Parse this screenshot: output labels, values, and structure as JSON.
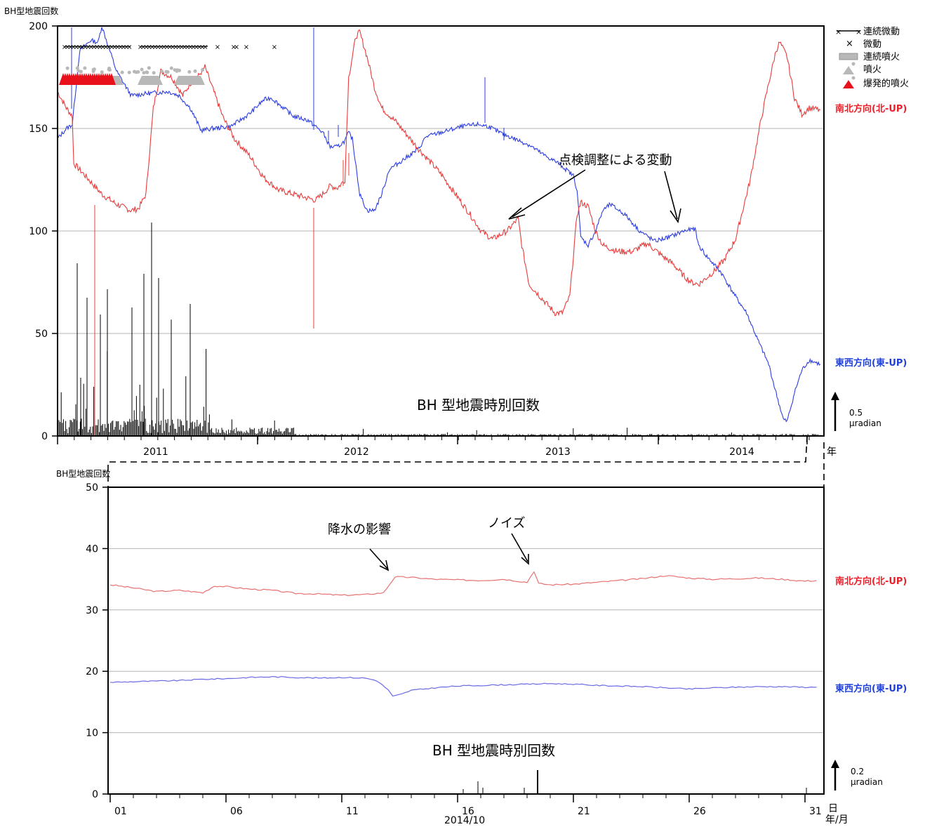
{
  "colors": {
    "ns": "#e83c3c",
    "ew": "#2d3ee0",
    "count": "#000000",
    "grid": "#b4b4b4",
    "eruption_red": "#e8101a",
    "eruption_gray": "#b8b8b8"
  },
  "chart_data": [
    {
      "type": "line",
      "ylabel": "BH型地震回数",
      "ylim": [
        0,
        200
      ],
      "yticks": [
        "0",
        "50",
        "100",
        "150",
        "200"
      ],
      "year_labels": [
        "2011",
        "2012",
        "2013",
        "2014"
      ],
      "year_unit": "年",
      "count_label": "BH 型地震時別回数",
      "scale_label": [
        "0.5",
        "μradian"
      ],
      "legend": [
        "連続微動",
        "微動",
        "連続噴火",
        "噴火",
        "爆発的噴火"
      ],
      "series_labels": {
        "ns": "南北方向(北-UP)",
        "ew": "東西方向(東-UP)"
      },
      "annotation": "点検調整による変動",
      "ns_points": [
        [
          0,
          168
        ],
        [
          0.012,
          160
        ],
        [
          0.02,
          156
        ],
        [
          0.022,
          133
        ],
        [
          0.04,
          126
        ],
        [
          0.06,
          118
        ],
        [
          0.08,
          113
        ],
        [
          0.1,
          110
        ],
        [
          0.11,
          111
        ],
        [
          0.12,
          118
        ],
        [
          0.13,
          160
        ],
        [
          0.14,
          178
        ],
        [
          0.155,
          175
        ],
        [
          0.17,
          166
        ],
        [
          0.18,
          172
        ],
        [
          0.19,
          175
        ],
        [
          0.2,
          180
        ],
        [
          0.21,
          170
        ],
        [
          0.225,
          155
        ],
        [
          0.24,
          145
        ],
        [
          0.26,
          137
        ],
        [
          0.28,
          126
        ],
        [
          0.3,
          120
        ],
        [
          0.32,
          118
        ],
        [
          0.34,
          116
        ],
        [
          0.35,
          115
        ],
        [
          0.36,
          118
        ],
        [
          0.37,
          122
        ],
        [
          0.38,
          121
        ],
        [
          0.385,
          123
        ],
        [
          0.39,
          125
        ],
        [
          0.395,
          175
        ],
        [
          0.405,
          195
        ],
        [
          0.41,
          197
        ],
        [
          0.42,
          185
        ],
        [
          0.43,
          170
        ],
        [
          0.44,
          160
        ],
        [
          0.46,
          153
        ],
        [
          0.49,
          140
        ],
        [
          0.52,
          128
        ],
        [
          0.54,
          118
        ],
        [
          0.56,
          108
        ],
        [
          0.575,
          100
        ],
        [
          0.59,
          96
        ],
        [
          0.61,
          100
        ],
        [
          0.625,
          106
        ],
        [
          0.63,
          93
        ],
        [
          0.64,
          74
        ],
        [
          0.66,
          66
        ],
        [
          0.675,
          60
        ],
        [
          0.685,
          60
        ],
        [
          0.695,
          68
        ],
        [
          0.7,
          88
        ],
        [
          0.705,
          108
        ],
        [
          0.71,
          114
        ],
        [
          0.72,
          112
        ],
        [
          0.73,
          100
        ],
        [
          0.74,
          93
        ],
        [
          0.76,
          90
        ],
        [
          0.78,
          90
        ],
        [
          0.8,
          94
        ],
        [
          0.82,
          88
        ],
        [
          0.835,
          84
        ],
        [
          0.85,
          78
        ],
        [
          0.86,
          75
        ],
        [
          0.87,
          74
        ],
        [
          0.88,
          77
        ],
        [
          0.89,
          80
        ],
        [
          0.905,
          86
        ],
        [
          0.92,
          96
        ],
        [
          0.94,
          125
        ],
        [
          0.955,
          155
        ],
        [
          0.965,
          172
        ],
        [
          0.975,
          188
        ],
        [
          0.98,
          192
        ],
        [
          0.99,
          185
        ],
        [
          1,
          165
        ],
        [
          1.01,
          157
        ],
        [
          1.02,
          160
        ],
        [
          1.035,
          159
        ]
      ],
      "ew_points": [
        [
          0,
          145
        ],
        [
          0.012,
          150
        ],
        [
          0.02,
          152
        ],
        [
          0.03,
          188
        ],
        [
          0.045,
          193
        ],
        [
          0.055,
          192
        ],
        [
          0.06,
          200
        ],
        [
          0.08,
          178
        ],
        [
          0.1,
          166
        ],
        [
          0.12,
          167
        ],
        [
          0.15,
          168
        ],
        [
          0.165,
          166
        ],
        [
          0.18,
          160
        ],
        [
          0.195,
          149
        ],
        [
          0.21,
          150
        ],
        [
          0.235,
          151
        ],
        [
          0.26,
          157
        ],
        [
          0.28,
          164
        ],
        [
          0.29,
          165
        ],
        [
          0.3,
          162
        ],
        [
          0.32,
          156
        ],
        [
          0.34,
          154
        ],
        [
          0.36,
          148
        ],
        [
          0.37,
          141
        ],
        [
          0.38,
          141
        ],
        [
          0.39,
          144
        ],
        [
          0.395,
          148
        ],
        [
          0.4,
          145
        ],
        [
          0.405,
          132
        ],
        [
          0.41,
          118
        ],
        [
          0.42,
          110
        ],
        [
          0.43,
          110
        ],
        [
          0.44,
          118
        ],
        [
          0.45,
          130
        ],
        [
          0.47,
          135
        ],
        [
          0.49,
          140
        ],
        [
          0.5,
          146
        ],
        [
          0.53,
          149
        ],
        [
          0.55,
          151
        ],
        [
          0.57,
          152
        ],
        [
          0.585,
          151
        ],
        [
          0.6,
          148
        ],
        [
          0.62,
          145
        ],
        [
          0.64,
          142
        ],
        [
          0.66,
          137
        ],
        [
          0.68,
          133
        ],
        [
          0.7,
          127
        ],
        [
          0.705,
          120
        ],
        [
          0.71,
          97
        ],
        [
          0.72,
          93
        ],
        [
          0.73,
          100
        ],
        [
          0.74,
          110
        ],
        [
          0.75,
          113
        ],
        [
          0.77,
          108
        ],
        [
          0.79,
          100
        ],
        [
          0.81,
          95
        ],
        [
          0.83,
          97
        ],
        [
          0.85,
          100
        ],
        [
          0.865,
          101
        ],
        [
          0.87,
          93
        ],
        [
          0.88,
          88
        ],
        [
          0.9,
          80
        ],
        [
          0.92,
          68
        ],
        [
          0.935,
          60
        ],
        [
          0.95,
          47
        ],
        [
          0.965,
          35
        ],
        [
          0.975,
          21
        ],
        [
          0.985,
          8
        ],
        [
          0.99,
          7
        ],
        [
          1,
          21
        ],
        [
          1.01,
          32
        ],
        [
          1.02,
          37
        ],
        [
          1.035,
          35
        ]
      ]
    },
    {
      "type": "line",
      "ylabel": "BH型地震回数",
      "ylim": [
        0,
        50
      ],
      "yticks": [
        "0",
        "10",
        "20",
        "30",
        "40",
        "50"
      ],
      "xlabel": "2014/10",
      "xticks": [
        "01",
        "06",
        "11",
        "16",
        "21",
        "26",
        "31"
      ],
      "x_unit": [
        "日",
        "年/月"
      ],
      "count_label": "BH 型地震時別回数",
      "scale_label": [
        "0.2",
        "μradian"
      ],
      "series_labels": {
        "ns": "南北方向(北-UP)",
        "ew": "東西方向(東-UP)"
      },
      "annotation_rain": "降水の影響",
      "annotation_noise": "ノイズ",
      "ns_points": [
        [
          1,
          34.1
        ],
        [
          2,
          33.6
        ],
        [
          3,
          33.0
        ],
        [
          4,
          33.2
        ],
        [
          5,
          32.8
        ],
        [
          5.5,
          33.9
        ],
        [
          6,
          33.8
        ],
        [
          7,
          33.4
        ],
        [
          8,
          33.2
        ],
        [
          9,
          32.7
        ],
        [
          10,
          32.6
        ],
        [
          11,
          32.4
        ],
        [
          12,
          32.5
        ],
        [
          12.8,
          32.8
        ],
        [
          13.3,
          35.4
        ],
        [
          14,
          35.3
        ],
        [
          15,
          35.0
        ],
        [
          16,
          34.9
        ],
        [
          17,
          34.8
        ],
        [
          18,
          35.0
        ],
        [
          19,
          34.5
        ],
        [
          19.3,
          36.3
        ],
        [
          19.5,
          34.3
        ],
        [
          20,
          34.1
        ],
        [
          21,
          34.2
        ],
        [
          22,
          34.5
        ],
        [
          23,
          34.8
        ],
        [
          24,
          35.1
        ],
        [
          25,
          35.6
        ],
        [
          26,
          35.2
        ],
        [
          27,
          35.0
        ],
        [
          28,
          35.1
        ],
        [
          29,
          35.2
        ],
        [
          30,
          35.0
        ],
        [
          31,
          34.7
        ],
        [
          31.5,
          34.8
        ]
      ],
      "ew_points": [
        [
          1,
          18.2
        ],
        [
          2,
          18.3
        ],
        [
          3,
          18.4
        ],
        [
          4,
          18.5
        ],
        [
          5,
          18.7
        ],
        [
          6,
          18.8
        ],
        [
          7,
          19.0
        ],
        [
          8,
          19.1
        ],
        [
          9,
          19.0
        ],
        [
          10,
          18.9
        ],
        [
          11,
          19.0
        ],
        [
          12,
          18.9
        ],
        [
          12.5,
          18.5
        ],
        [
          13,
          17.0
        ],
        [
          13.2,
          15.9
        ],
        [
          13.6,
          16.3
        ],
        [
          14,
          16.9
        ],
        [
          15,
          17.3
        ],
        [
          16,
          17.6
        ],
        [
          17,
          17.7
        ],
        [
          18,
          17.8
        ],
        [
          19,
          17.9
        ],
        [
          20,
          18.0
        ],
        [
          21,
          17.9
        ],
        [
          22,
          17.7
        ],
        [
          23,
          17.6
        ],
        [
          24,
          17.5
        ],
        [
          25,
          17.3
        ],
        [
          26,
          17.1
        ],
        [
          27,
          17.3
        ],
        [
          28,
          17.4
        ],
        [
          29,
          17.5
        ],
        [
          30,
          17.5
        ],
        [
          31,
          17.4
        ],
        [
          31.5,
          17.4
        ]
      ]
    }
  ]
}
